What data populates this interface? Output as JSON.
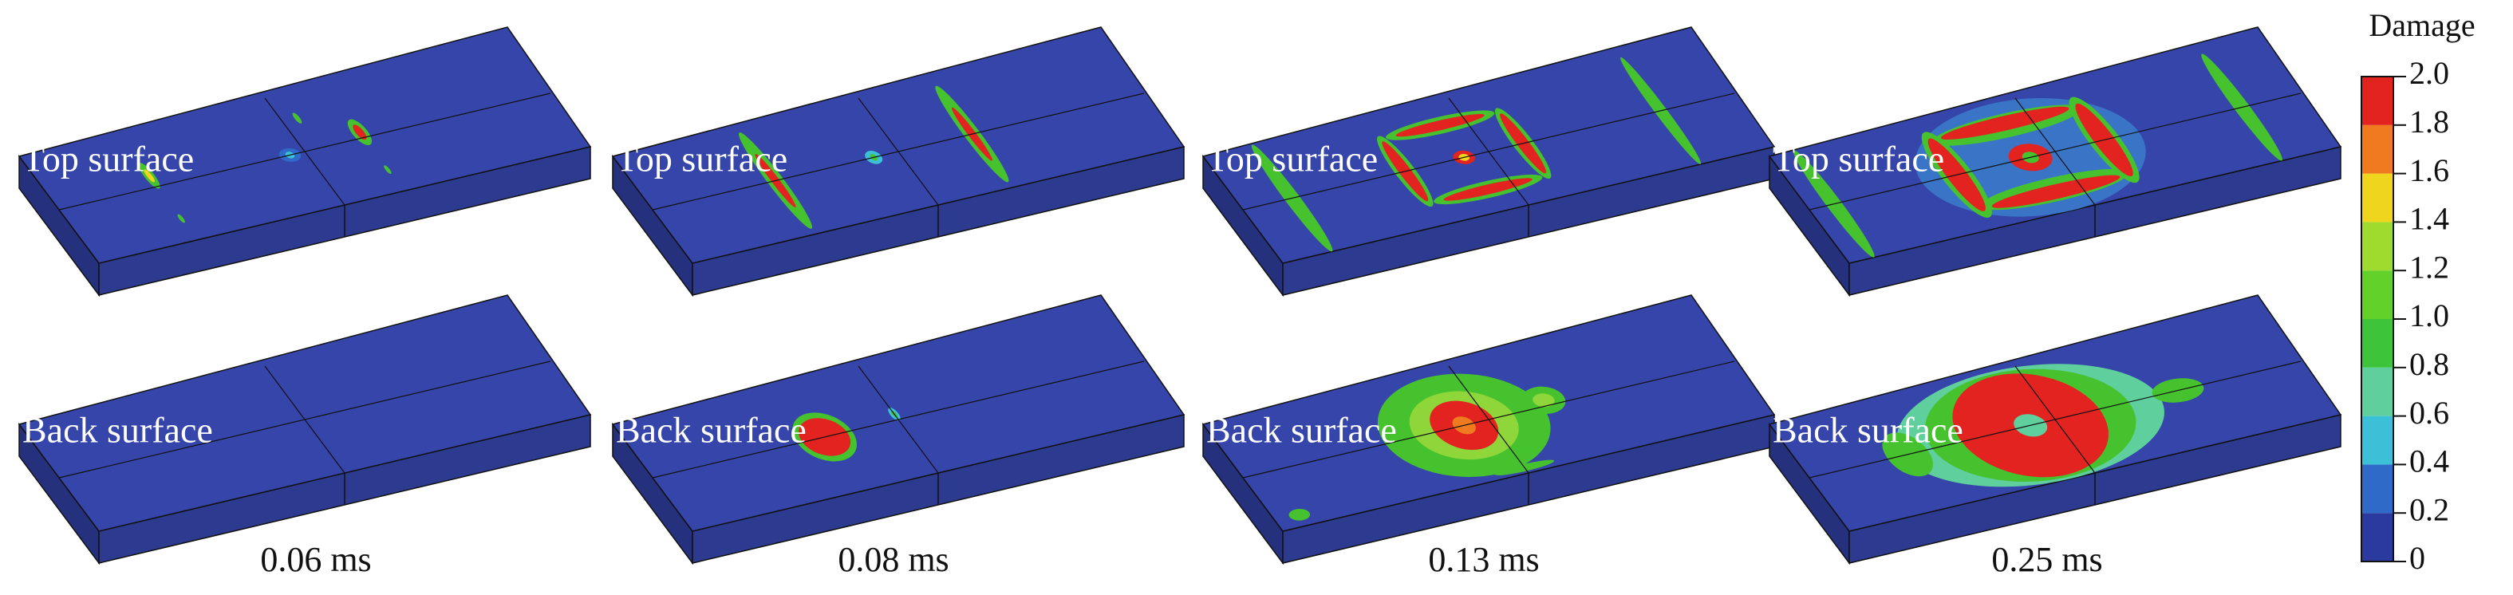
{
  "row_labels": [
    "Top surface",
    "Back surface"
  ],
  "times": [
    "0.06 ms",
    "0.08 ms",
    "0.13 ms",
    "0.25 ms"
  ],
  "colorbar": {
    "title": "Damage",
    "ylim": [
      0,
      2
    ],
    "ticks": [
      0,
      0.2,
      0.4,
      0.6,
      0.8,
      {
        "value": 1,
        "label": "1.0"
      },
      1.2,
      1.4,
      1.6,
      1.8,
      {
        "value": 2,
        "label": "2.0"
      }
    ],
    "colors": [
      "#2b3a9f",
      "#2f6ac8",
      "#3cc0d8",
      "#5fcf9e",
      "#3dc43a",
      "#62d12a",
      "#9edb2e",
      "#f0d51f",
      "#ef7a1f",
      "#e2231f"
    ]
  }
}
